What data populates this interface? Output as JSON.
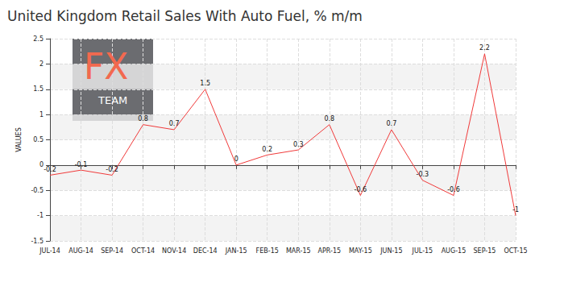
{
  "chart_data": {
    "type": "line",
    "title": "United Kingdom Retail Sales With Auto Fuel, % m/m",
    "y_label": "VALUES",
    "annotations": [
      "FX",
      "TEAM"
    ],
    "categories": [
      "JUL-14",
      "AUG-14",
      "SEP-14",
      "OCT-14",
      "NOV-14",
      "DEC-14",
      "JAN-15",
      "FEB-15",
      "MAR-15",
      "APR-15",
      "MAY-15",
      "JUN-15",
      "JUL-15",
      "AUG-15",
      "SEP-15",
      "OCT-15"
    ],
    "values": [
      -0.2,
      -0.1,
      -0.2,
      0.8,
      0.7,
      1.5,
      0,
      0.2,
      0.3,
      0.8,
      -0.6,
      0.7,
      -0.3,
      -0.6,
      2.2,
      -1
    ],
    "color": "#f03a3a",
    "ylim": [
      -1.5,
      2.5
    ],
    "yticks": [
      -1.5,
      -1,
      -0.5,
      0,
      0.5,
      1,
      1.5,
      2,
      2.5
    ],
    "grid": true,
    "data_labels": true
  }
}
